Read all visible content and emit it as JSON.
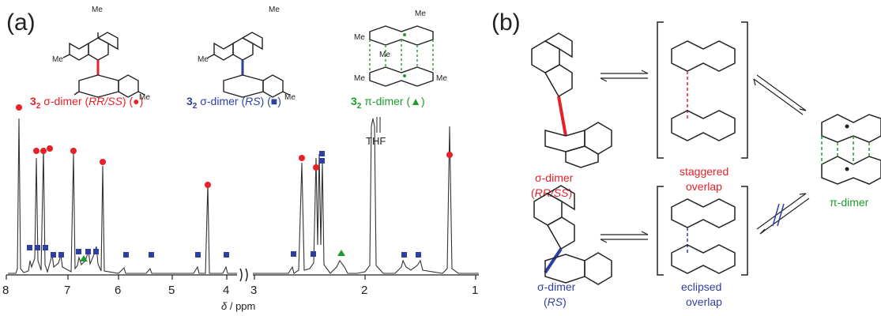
{
  "panel_a": {
    "label": "(a)",
    "species": [
      {
        "prefix": "3",
        "sub": "2",
        "name": " σ-dimer (",
        "stereo": "RR/SS",
        "close": ") (",
        "marker": "●",
        "end": ")",
        "color": "#e8202a"
      },
      {
        "prefix": "3",
        "sub": "2",
        "name": " σ-dimer (",
        "stereo": "RS",
        "close": ") (",
        "marker": "■",
        "end": ")",
        "color": "#2f3fa0"
      },
      {
        "prefix": "3",
        "sub": "2",
        "name": " π-dimer (",
        "stereo": "",
        "close": "",
        "marker": "▲",
        "end": ")",
        "color": "#1e9a2e"
      }
    ],
    "struct_labels": {
      "me": "Me"
    },
    "solvent_label": "THF",
    "xaxis": {
      "left_ticks": [
        "8",
        "7",
        "6",
        "5",
        "4"
      ],
      "right_ticks": [
        "3",
        "2",
        "1"
      ],
      "label_delta": "δ",
      "label_unit": " / ppm"
    },
    "colors": {
      "red": "#e8202a",
      "blue": "#2f3fa0",
      "green": "#1e9a2e",
      "black": "#222222"
    }
  },
  "panel_b": {
    "label": "(b)",
    "sigma_rrss": {
      "line1": "σ-dimer",
      "line2_open": "(",
      "line2_italic": "RR/SS",
      "line2_close": ")"
    },
    "staggered": {
      "line1": "staggered",
      "line2": "overlap"
    },
    "sigma_rs": {
      "line1": "σ-dimer",
      "line2_open": "(",
      "line2_italic": "RS",
      "line2_close": ")"
    },
    "eclipsed": {
      "line1": "eclipsed",
      "line2": "overlap"
    },
    "pi_dimer": "π-dimer"
  }
}
